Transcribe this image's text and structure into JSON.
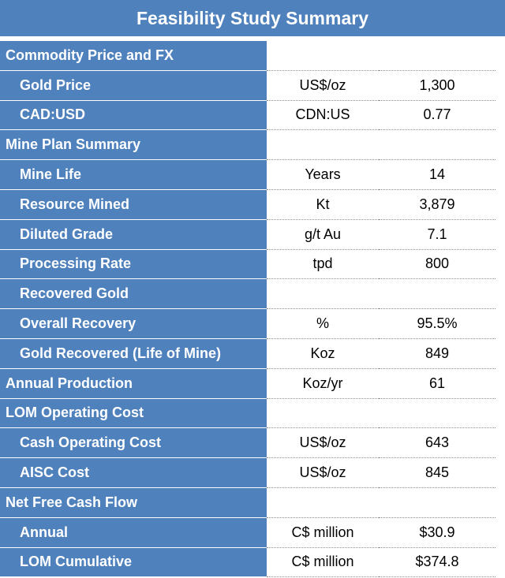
{
  "title": "Feasibility Study Summary",
  "colors": {
    "header_bg": "#4f81bd",
    "header_text": "#ffffff",
    "cell_text": "#000000"
  },
  "rows": [
    {
      "label": "Commodity Price and FX",
      "unit": "",
      "value": "",
      "section": true
    },
    {
      "label": "Gold Price",
      "unit": "US$/oz",
      "value": "1,300",
      "section": false
    },
    {
      "label": "CAD:USD",
      "unit": "CDN:US",
      "value": "0.77",
      "section": false
    },
    {
      "label": "Mine Plan Summary",
      "unit": "",
      "value": "",
      "section": true
    },
    {
      "label": "Mine Life",
      "unit": "Years",
      "value": "14",
      "section": false
    },
    {
      "label": "Resource Mined",
      "unit": "Kt",
      "value": "3,879",
      "section": false
    },
    {
      "label": "Diluted Grade",
      "unit": "g/t Au",
      "value": "7.1",
      "section": false
    },
    {
      "label": "Processing Rate",
      "unit": "tpd",
      "value": "800",
      "section": false
    },
    {
      "label": "Recovered Gold",
      "unit": "",
      "value": "",
      "section": false
    },
    {
      "label": "Overall Recovery",
      "unit": "%",
      "value": "95.5%",
      "section": false
    },
    {
      "label": "Gold Recovered (Life of Mine)",
      "unit": "Koz",
      "value": "849",
      "section": false
    },
    {
      "label": "Annual Production",
      "unit": "Koz/yr",
      "value": "61",
      "section": true
    },
    {
      "label": "LOM Operating Cost",
      "unit": "",
      "value": "",
      "section": true
    },
    {
      "label": "Cash Operating Cost",
      "unit": "US$/oz",
      "value": "643",
      "section": false
    },
    {
      "label": "AISC Cost",
      "unit": "US$/oz",
      "value": "845",
      "section": false
    },
    {
      "label": "Net Free Cash Flow",
      "unit": "",
      "value": "",
      "section": true
    },
    {
      "label": "Annual",
      "unit": "C$ million",
      "value": "$30.9",
      "section": false
    },
    {
      "label": "LOM Cumulative",
      "unit": "C$ million",
      "value": "$374.8",
      "section": false
    }
  ]
}
